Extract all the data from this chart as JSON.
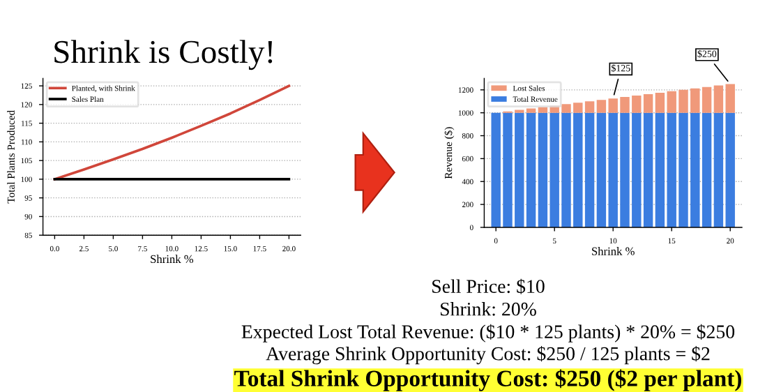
{
  "chart_data": [
    {
      "type": "line",
      "title": "Shrink is Costly!",
      "xlabel": "Shrink %",
      "ylabel": "Total Plants Produced",
      "x": [
        0,
        2.5,
        5,
        7.5,
        10,
        12.5,
        15,
        17.5,
        20
      ],
      "series": [
        {
          "name": "Planted, with Shrink",
          "color": "#d0463a",
          "values": [
            100,
            102.6,
            105.3,
            108.1,
            111.1,
            114.3,
            117.6,
            121.2,
            125
          ]
        },
        {
          "name": "Sales Plan",
          "color": "#000000",
          "values": [
            100,
            100,
            100,
            100,
            100,
            100,
            100,
            100,
            100
          ]
        }
      ],
      "xlim": [
        -1,
        21
      ],
      "xticks": [
        {
          "value": 0,
          "label": "0.0"
        },
        {
          "value": 2.5,
          "label": "2.5"
        },
        {
          "value": 5,
          "label": "5.0"
        },
        {
          "value": 7.5,
          "label": "7.5"
        },
        {
          "value": 10,
          "label": "10.0"
        },
        {
          "value": 12.5,
          "label": "12.5"
        },
        {
          "value": 15,
          "label": "15.0"
        },
        {
          "value": 17.5,
          "label": "17.5"
        },
        {
          "value": 20,
          "label": "20.0"
        }
      ],
      "ylim": [
        85,
        127
      ],
      "yticks": [
        85,
        90,
        95,
        100,
        105,
        110,
        115,
        120,
        125
      ],
      "grid": "y",
      "legend": "top left"
    },
    {
      "type": "bar",
      "stacked": true,
      "xlabel": "Shrink %",
      "ylabel": "Revenue ($)",
      "x": [
        0,
        1,
        2,
        3,
        4,
        5,
        6,
        7,
        8,
        9,
        10,
        11,
        12,
        13,
        14,
        15,
        16,
        17,
        18,
        19,
        20
      ],
      "series": [
        {
          "name": "Total Revenue",
          "color": "#3b7de0",
          "values": [
            1000,
            1000,
            1000,
            1000,
            1000,
            1000,
            1000,
            1000,
            1000,
            1000,
            1000,
            1000,
            1000,
            1000,
            1000,
            1000,
            1000,
            1000,
            1000,
            1000,
            1000
          ]
        },
        {
          "name": "Lost Sales",
          "color": "#f0997a",
          "values": [
            0,
            12,
            25,
            38,
            50,
            62,
            75,
            88,
            100,
            112,
            125,
            138,
            150,
            162,
            175,
            188,
            200,
            212,
            225,
            238,
            250
          ]
        }
      ],
      "xlim": [
        -1,
        21
      ],
      "xticks": [
        0,
        5,
        10,
        15,
        20
      ],
      "ylim": [
        0,
        1300
      ],
      "yticks": [
        0,
        200,
        400,
        600,
        800,
        1000,
        1200
      ],
      "grid": "y",
      "legend": "top left",
      "annotations": [
        {
          "text": "$125",
          "x": 10,
          "y": 1125
        },
        {
          "text": "$250",
          "x": 20,
          "y": 1250
        },
        "Sell Price: $10",
        "Shrink: 20%",
        "Expected Lost Total Revenue: ($10 * 125 plants) * 20% = $250",
        "Average Shrink Opportunity Cost: $250 / 125 plants = $2",
        "Total Shrink Opportunity Cost: $250 ($2 per plant)"
      ]
    }
  ]
}
